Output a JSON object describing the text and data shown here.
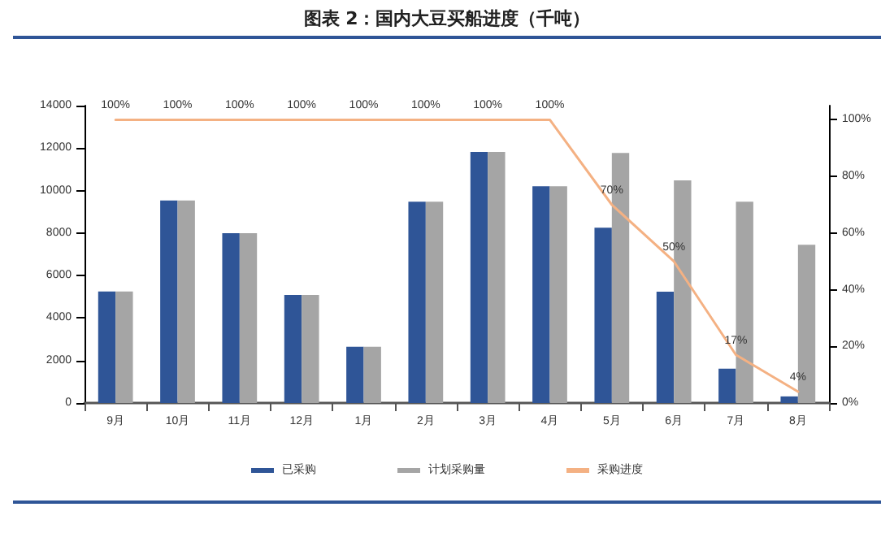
{
  "chart_data": {
    "type": "bar",
    "title": "图表 2：国内大豆买船进度（千吨）",
    "categories": [
      "9月",
      "10月",
      "11月",
      "12月",
      "1月",
      "2月",
      "3月",
      "4月",
      "5月",
      "6月",
      "7月",
      "8月"
    ],
    "series": [
      {
        "name": "已采购",
        "color": "#2f5597",
        "values": [
          5250,
          9530,
          7990,
          5090,
          2650,
          9480,
          11820,
          10200,
          8250,
          5240,
          1620,
          310
        ]
      },
      {
        "name": "计划采购量",
        "color": "#a5a5a5",
        "values": [
          5250,
          9530,
          7990,
          5090,
          2650,
          9480,
          11820,
          10200,
          11770,
          10480,
          9480,
          7450
        ]
      },
      {
        "name": "采购进度",
        "type": "line",
        "axis": "y2",
        "color": "#f4b183",
        "marker": "none",
        "values": [
          100,
          100,
          100,
          100,
          100,
          100,
          100,
          100,
          70,
          50,
          17,
          4
        ],
        "value_labels": [
          "100%",
          "100%",
          "100%",
          "100%",
          "100%",
          "100%",
          "100%",
          "100%",
          "70%",
          "50%",
          "17%",
          "4%"
        ]
      }
    ],
    "ylim": [
      0,
      14000
    ],
    "yticks": [
      0,
      2000,
      4000,
      6000,
      8000,
      10000,
      12000,
      14000
    ],
    "y2lim": [
      0,
      105
    ],
    "y2ticks": [
      {
        "value": 0,
        "label": "0%"
      },
      {
        "value": 20,
        "label": "20%"
      },
      {
        "value": 40,
        "label": "40%"
      },
      {
        "value": 60,
        "label": "60%"
      },
      {
        "value": 80,
        "label": "80%"
      },
      {
        "value": 100,
        "label": "100%"
      }
    ],
    "grid": false,
    "legend": "bottom"
  }
}
